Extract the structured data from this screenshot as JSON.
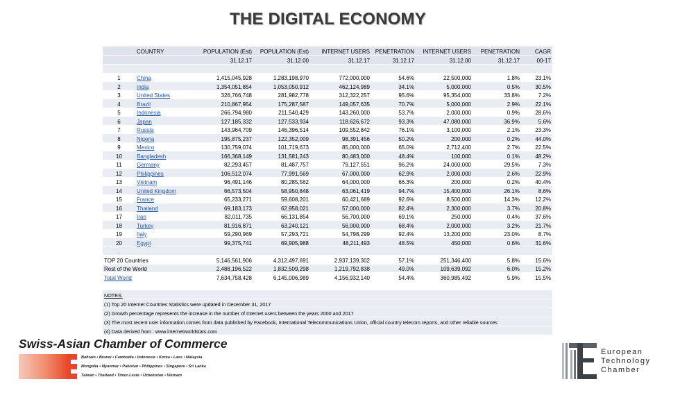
{
  "title": "THE DIGITAL ECONOMY",
  "header": {
    "cols": [
      "",
      "COUNTRY",
      "POPULATION (Est)",
      "POPULATION (Est)",
      "INTERNET USERS",
      "PENETRATION",
      "INTERNET USERS",
      "PENETRATION",
      "CAGR"
    ],
    "dates": [
      "",
      "",
      "31.12.17",
      "31.12.00",
      "31.12.17",
      "31.12.17",
      "31.12.00",
      "31.12.17",
      "00-17"
    ]
  },
  "rows": [
    {
      "rank": "1",
      "country": "China",
      "pop17": "1,415,045,928",
      "pop00": "1,283,198,970",
      "users17": "772,000,000",
      "pen17": "54.6%",
      "users00": "22,500,000",
      "pen00": "1.8%",
      "cagr": "23.1%"
    },
    {
      "rank": "2",
      "country": "India",
      "pop17": "1,354,051,854",
      "pop00": "1,053,050,912",
      "users17": "462,124,989",
      "pen17": "34.1%",
      "users00": "5,000,000",
      "pen00": "0.5%",
      "cagr": "30.5%"
    },
    {
      "rank": "3",
      "country": "United States",
      "pop17": "326,766,748",
      "pop00": "281,982,778",
      "users17": "312,322,257",
      "pen17": "95.6%",
      "users00": "95,354,000",
      "pen00": "33.8%",
      "cagr": "7.2%"
    },
    {
      "rank": "4",
      "country": "Brazil",
      "pop17": "210,867,954",
      "pop00": "175,287,587",
      "users17": "149,057,635",
      "pen17": "70.7%",
      "users00": "5,000,000",
      "pen00": "2.9%",
      "cagr": "22.1%"
    },
    {
      "rank": "5",
      "country": "Indonesia",
      "pop17": "266,794,980",
      "pop00": "211,540,429",
      "users17": "143,260,000",
      "pen17": "53.7%",
      "users00": "2,000,000",
      "pen00": "0.9%",
      "cagr": "28.6%"
    },
    {
      "rank": "6",
      "country": "Japan",
      "pop17": "127,185,332",
      "pop00": "127,533,934",
      "users17": "118,626,672",
      "pen17": "93.3%",
      "users00": "47,080,000",
      "pen00": "36.9%",
      "cagr": "5.6%"
    },
    {
      "rank": "7",
      "country": "Russia",
      "pop17": "143,964,709",
      "pop00": "146,396,514",
      "users17": "109,552,842",
      "pen17": "76.1%",
      "users00": "3,100,000",
      "pen00": "2.1%",
      "cagr": "23.3%"
    },
    {
      "rank": "8",
      "country": "Nigeria",
      "pop17": "195,875,237",
      "pop00": "122,352,009",
      "users17": "98,391,456",
      "pen17": "50.2%",
      "users00": "200,000",
      "pen00": "0.2%",
      "cagr": "44.0%"
    },
    {
      "rank": "9",
      "country": "Mexico",
      "pop17": "130,759,074",
      "pop00": "101,719,673",
      "users17": "85,000,000",
      "pen17": "65.0%",
      "users00": "2,712,400",
      "pen00": "2.7%",
      "cagr": "22.5%"
    },
    {
      "rank": "10",
      "country": "Bangladesh",
      "pop17": "166,368,149",
      "pop00": "131,581,243",
      "users17": "80,483,000",
      "pen17": "48.4%",
      "users00": "100,000",
      "pen00": "0.1%",
      "cagr": "48.2%"
    },
    {
      "rank": "11",
      "country": "Germany",
      "pop17": "82,293,457",
      "pop00": "81,487,757",
      "users17": "79,127,551",
      "pen17": "96.2%",
      "users00": "24,000,000",
      "pen00": "29.5%",
      "cagr": "7.3%"
    },
    {
      "rank": "12",
      "country": "Philippines",
      "pop17": "106,512,074",
      "pop00": "77,991,569",
      "users17": "67,000,000",
      "pen17": "62.9%",
      "users00": "2,000,000",
      "pen00": "2.6%",
      "cagr": "22.9%"
    },
    {
      "rank": "13",
      "country": "Vietnam",
      "pop17": "96,491,146",
      "pop00": "80,285,562",
      "users17": "64,000,000",
      "pen17": "66.3%",
      "users00": "200,000",
      "pen00": "0.2%",
      "cagr": "40.4%"
    },
    {
      "rank": "14",
      "country": "United Kingdom",
      "pop17": "66,573,504",
      "pop00": "58,950,848",
      "users17": "63,061,419",
      "pen17": "94.7%",
      "users00": "15,400,000",
      "pen00": "26.1%",
      "cagr": "8.6%"
    },
    {
      "rank": "15",
      "country": "France",
      "pop17": "65,233,271",
      "pop00": "59,608,201",
      "users17": "60,421,689",
      "pen17": "92.6%",
      "users00": "8,500,000",
      "pen00": "14.3%",
      "cagr": "12.2%"
    },
    {
      "rank": "16",
      "country": "Thailand",
      "pop17": "69,183,173",
      "pop00": "62,958,021",
      "users17": "57,000,000",
      "pen17": "82.4%",
      "users00": "2,300,000",
      "pen00": "3.7%",
      "cagr": "20.8%"
    },
    {
      "rank": "17",
      "country": "Iran",
      "pop17": "82,011,735",
      "pop00": "66,131,854",
      "users17": "56,700,000",
      "pen17": "69.1%",
      "users00": "250,000",
      "pen00": "0.4%",
      "cagr": "37.6%"
    },
    {
      "rank": "18",
      "country": "Turkey",
      "pop17": "81,916,871",
      "pop00": "63,240,121",
      "users17": "56,000,000",
      "pen17": "68.4%",
      "users00": "2,000,000",
      "pen00": "3.2%",
      "cagr": "21.7%"
    },
    {
      "rank": "19",
      "country": "Italy",
      "pop17": "59,290,969",
      "pop00": "57,293,721",
      "users17": "54,798,299",
      "pen17": "92.4%",
      "users00": "13,200,000",
      "pen00": "23.0%",
      "cagr": "8.7%"
    },
    {
      "rank": "20",
      "country": "Egypt",
      "pop17": "99,375,741",
      "pop00": "69,905,988",
      "users17": "48,211,493",
      "pen17": "48.5%",
      "users00": "450,000",
      "pen00": "0.6%",
      "cagr": "31.6%"
    }
  ],
  "dot": ".",
  "totals": [
    {
      "label": "TOP 20 Countries",
      "pop17": "5,146,561,906",
      "pop00": "4,312,497,691",
      "users17": "2,937,139,302",
      "pen17": "57.1%",
      "users00": "251,346,400",
      "pen00": "5.8%",
      "cagr": "15.6%"
    },
    {
      "label": "Rest of the World",
      "pop17": "2,488,196,522",
      "pop00": "1,832,509,298",
      "users17": "1,219,792,838",
      "pen17": "49.0%",
      "users00": "109,639,092",
      "pen00": "6.0%",
      "cagr": "15.2%"
    },
    {
      "label": "Total World",
      "pop17": "7,634,758,428",
      "pop00": "6,145,006,989",
      "users17": "4,156,932,140",
      "pen17": "54.4%",
      "users00": "360,985,492",
      "pen00": "5.9%",
      "cagr": "15.5%"
    }
  ],
  "notes": {
    "heading": "NOTES:",
    "items": [
      "(1) Top 20 Internet Countries Statistics were updated in December 31, 2017",
      "(2) Growth percentage represents the increase in the number of Internet users between the years 2000 and 2017",
      "(3) The most recent user information comes from data published by Facebook, International Telecommunications Union, official country telecom reports, and other reliable sources",
      "(4) Data derived from : www.internetworldstats.com"
    ]
  },
  "footer": {
    "sacc_title": "Swiss-Asian Chamber of Commerce",
    "sacc_lines": [
      "Bahrain • Brunei • Cambodia • Indonesia • Korea • Laos • Malaysia",
      "Mongolia • Myanmar • Pakistan • Philippines • Singapore • Sri Lanka",
      "Taiwan • Thailand • Timor-Leste • Uzbekistan • Vietnam"
    ],
    "etc_lines": [
      "European",
      "Technology",
      "Chamber"
    ],
    "accent": "#e8452a"
  }
}
